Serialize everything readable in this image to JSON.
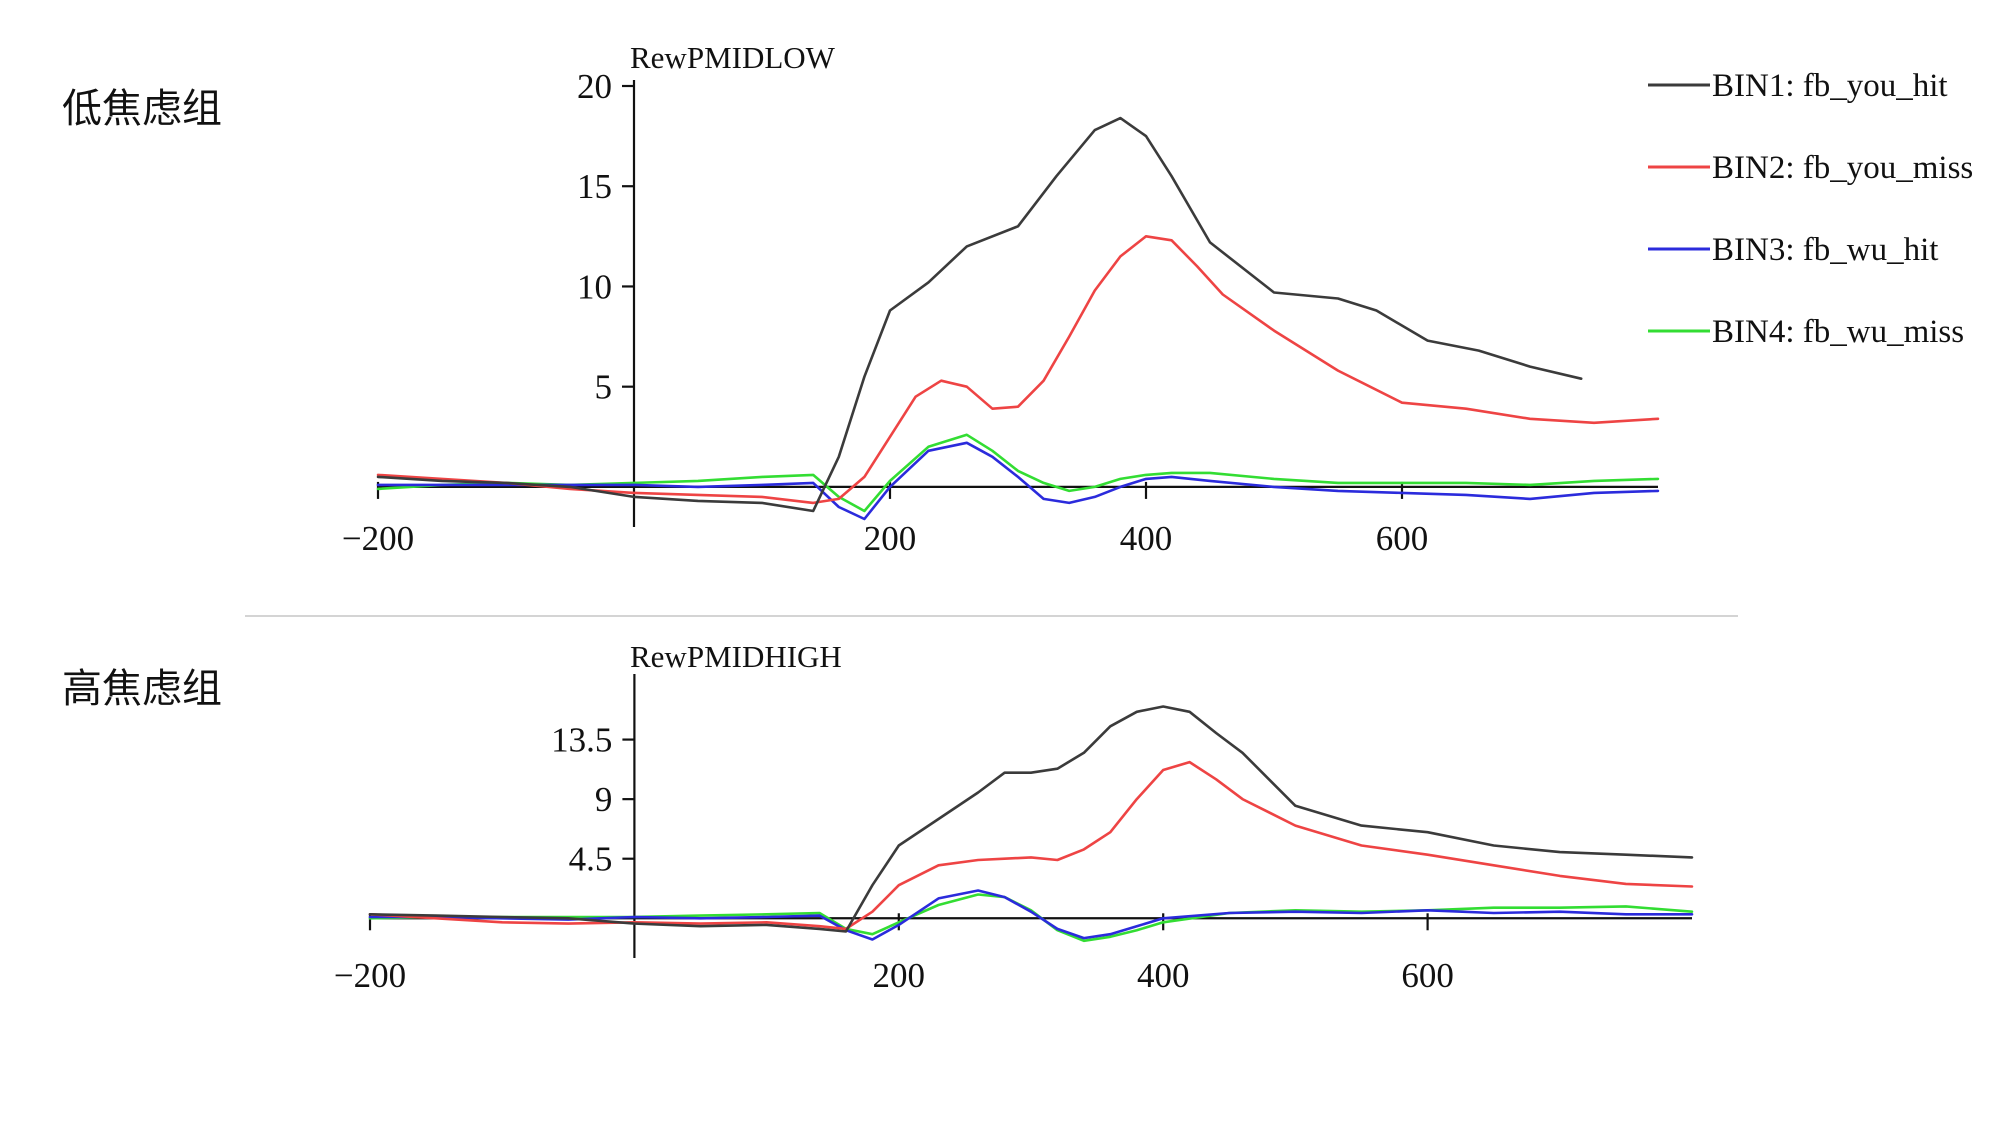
{
  "colors": {
    "divider": "#d4d4d4",
    "axis": "#111111"
  },
  "legend": {
    "items": [
      {
        "label": "BIN1: fb_you_hit",
        "color": "#3b3b3b"
      },
      {
        "label": "BIN2: fb_you_miss",
        "color": "#ee4444"
      },
      {
        "label": "BIN3: fb_wu_hit",
        "color": "#2b2bdc"
      },
      {
        "label": "BIN4: fb_wu_miss",
        "color": "#33dd33"
      }
    ]
  },
  "chart_data": [
    {
      "type": "line",
      "group_label": "低焦虑组",
      "title": "RewPMIDLOW",
      "xlim": [
        -200,
        800
      ],
      "ylim": [
        -2,
        20
      ],
      "x_ticks": [
        -200,
        200,
        400,
        600
      ],
      "x_tick_labels": [
        "−200",
        "200",
        "400",
        "600"
      ],
      "y_ticks": [
        5,
        10,
        15,
        20
      ],
      "y_tick_labels": [
        "5",
        "10",
        "15",
        "20"
      ],
      "series": [
        {
          "name": "BIN1: fb_you_hit",
          "color": "#3b3b3b",
          "x": [
            -200,
            -150,
            -100,
            -50,
            0,
            50,
            100,
            140,
            160,
            180,
            200,
            230,
            260,
            300,
            330,
            360,
            380,
            400,
            420,
            450,
            500,
            550,
            580,
            620,
            660,
            700,
            740
          ],
          "y": [
            0.5,
            0.3,
            0.2,
            0.0,
            -0.5,
            -0.7,
            -0.8,
            -1.2,
            1.5,
            5.5,
            8.8,
            10.2,
            12.0,
            13.0,
            15.5,
            17.8,
            18.4,
            17.5,
            15.5,
            12.2,
            9.7,
            9.4,
            8.8,
            7.3,
            6.8,
            6.0,
            5.4
          ]
        },
        {
          "name": "BIN2: fb_you_miss",
          "color": "#ee4444",
          "x": [
            -200,
            -150,
            -100,
            -50,
            0,
            50,
            100,
            140,
            160,
            180,
            200,
            220,
            240,
            260,
            280,
            300,
            320,
            340,
            360,
            380,
            400,
            420,
            440,
            460,
            500,
            550,
            600,
            650,
            700,
            750,
            800
          ],
          "y": [
            0.6,
            0.4,
            0.2,
            -0.1,
            -0.3,
            -0.4,
            -0.5,
            -0.8,
            -0.6,
            0.5,
            2.5,
            4.5,
            5.3,
            5.0,
            3.9,
            4.0,
            5.3,
            7.5,
            9.8,
            11.5,
            12.5,
            12.3,
            11.0,
            9.6,
            7.8,
            5.8,
            4.2,
            3.9,
            3.4,
            3.2,
            3.4
          ]
        },
        {
          "name": "BIN3: fb_wu_hit",
          "color": "#2b2bdc",
          "x": [
            -200,
            -150,
            -100,
            -50,
            0,
            50,
            100,
            140,
            160,
            180,
            200,
            230,
            260,
            280,
            300,
            320,
            340,
            360,
            380,
            400,
            420,
            450,
            500,
            550,
            600,
            650,
            700,
            750,
            800
          ],
          "y": [
            0.1,
            0.1,
            0.1,
            0.1,
            0.1,
            0.0,
            0.1,
            0.2,
            -1.0,
            -1.6,
            0.0,
            1.8,
            2.2,
            1.5,
            0.5,
            -0.6,
            -0.8,
            -0.5,
            0.0,
            0.4,
            0.5,
            0.3,
            0.0,
            -0.2,
            -0.3,
            -0.4,
            -0.6,
            -0.3,
            -0.2
          ]
        },
        {
          "name": "BIN4: fb_wu_miss",
          "color": "#33dd33",
          "x": [
            -200,
            -150,
            -100,
            -50,
            0,
            50,
            100,
            140,
            160,
            180,
            200,
            230,
            260,
            280,
            300,
            320,
            340,
            360,
            380,
            400,
            420,
            450,
            500,
            550,
            600,
            650,
            700,
            750,
            800
          ],
          "y": [
            -0.1,
            0.1,
            0.2,
            0.1,
            0.2,
            0.3,
            0.5,
            0.6,
            -0.5,
            -1.2,
            0.3,
            2.0,
            2.6,
            1.8,
            0.8,
            0.2,
            -0.2,
            0.0,
            0.4,
            0.6,
            0.7,
            0.7,
            0.4,
            0.2,
            0.2,
            0.2,
            0.1,
            0.3,
            0.4
          ]
        }
      ]
    },
    {
      "type": "line",
      "group_label": "高焦虑组",
      "title": "RewPMIDHIGH",
      "xlim": [
        -200,
        800
      ],
      "ylim": [
        -3,
        18
      ],
      "x_ticks": [
        -200,
        200,
        400,
        600
      ],
      "x_tick_labels": [
        "−200",
        "200",
        "400",
        "600"
      ],
      "y_ticks": [
        4.5,
        9,
        13.5
      ],
      "y_tick_labels": [
        "4.5",
        "9",
        "13.5"
      ],
      "series": [
        {
          "name": "BIN1: fb_you_hit",
          "color": "#3b3b3b",
          "x": [
            -200,
            -150,
            -100,
            -50,
            0,
            50,
            100,
            140,
            160,
            180,
            200,
            230,
            260,
            280,
            300,
            320,
            340,
            360,
            380,
            400,
            420,
            440,
            460,
            500,
            550,
            600,
            650,
            700,
            750,
            800
          ],
          "y": [
            0.3,
            0.2,
            0.1,
            0.0,
            -0.4,
            -0.6,
            -0.5,
            -0.8,
            -1.0,
            2.5,
            5.5,
            7.5,
            9.5,
            11.0,
            11.0,
            11.3,
            12.5,
            14.5,
            15.6,
            16.0,
            15.6,
            14.0,
            12.5,
            8.5,
            7.0,
            6.5,
            5.5,
            5.0,
            4.8,
            4.6
          ]
        },
        {
          "name": "BIN2: fb_you_miss",
          "color": "#ee4444",
          "x": [
            -200,
            -150,
            -100,
            -50,
            0,
            50,
            100,
            140,
            160,
            180,
            200,
            230,
            260,
            280,
            300,
            320,
            340,
            360,
            380,
            400,
            420,
            440,
            460,
            500,
            550,
            600,
            650,
            700,
            750,
            800
          ],
          "y": [
            0.3,
            0.0,
            -0.3,
            -0.4,
            -0.3,
            -0.4,
            -0.3,
            -0.6,
            -0.8,
            0.5,
            2.5,
            4.0,
            4.4,
            4.5,
            4.6,
            4.4,
            5.2,
            6.5,
            9.0,
            11.2,
            11.8,
            10.5,
            9.0,
            7.0,
            5.5,
            4.8,
            4.0,
            3.2,
            2.6,
            2.4
          ]
        },
        {
          "name": "BIN3: fb_wu_hit",
          "color": "#2b2bdc",
          "x": [
            -200,
            -150,
            -100,
            -50,
            0,
            50,
            100,
            140,
            160,
            180,
            200,
            230,
            260,
            280,
            300,
            320,
            340,
            360,
            380,
            400,
            450,
            500,
            550,
            600,
            650,
            700,
            750,
            800
          ],
          "y": [
            0.1,
            0.1,
            0.0,
            -0.1,
            0.1,
            0.0,
            0.1,
            0.2,
            -0.9,
            -1.6,
            -0.5,
            1.5,
            2.1,
            1.6,
            0.5,
            -0.8,
            -1.5,
            -1.2,
            -0.6,
            0.0,
            0.4,
            0.5,
            0.4,
            0.6,
            0.4,
            0.5,
            0.3,
            0.3
          ]
        },
        {
          "name": "BIN4: fb_wu_miss",
          "color": "#33dd33",
          "x": [
            -200,
            -150,
            -100,
            -50,
            0,
            50,
            100,
            140,
            160,
            180,
            200,
            230,
            260,
            280,
            300,
            320,
            340,
            360,
            380,
            400,
            450,
            500,
            550,
            600,
            650,
            700,
            750,
            800
          ],
          "y": [
            0.0,
            0.1,
            0.1,
            0.1,
            0.1,
            0.2,
            0.3,
            0.4,
            -0.8,
            -1.2,
            -0.3,
            1.0,
            1.8,
            1.6,
            0.6,
            -0.9,
            -1.7,
            -1.4,
            -0.9,
            -0.3,
            0.4,
            0.6,
            0.5,
            0.6,
            0.8,
            0.8,
            0.9,
            0.5
          ]
        }
      ]
    }
  ]
}
